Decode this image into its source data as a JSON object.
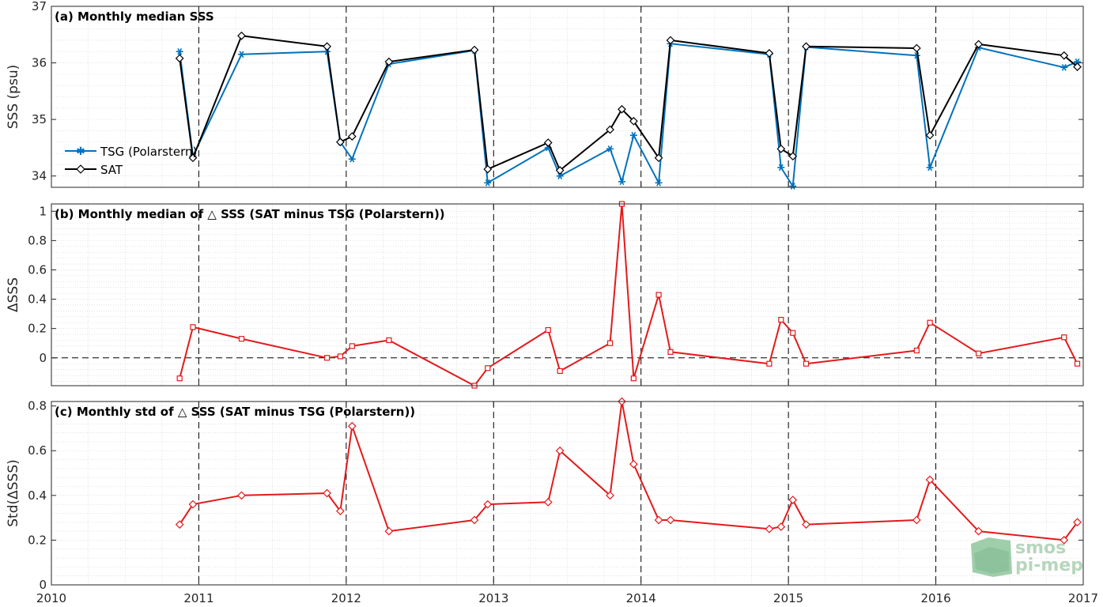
{
  "chart_data": [
    {
      "id": "a",
      "type": "line",
      "title": "(a) Monthly median SSS",
      "ylabel": "SSS (psu)",
      "xlabel": "",
      "xlim": [
        2010,
        2017
      ],
      "ylim": [
        33.8,
        37
      ],
      "yticks": [
        34,
        35,
        36,
        37
      ],
      "legend_position": "lower-left",
      "grid": true,
      "series": [
        {
          "name": "TSG (Polarstern)",
          "color": "#0072bd",
          "marker": "star",
          "x": [
            2010.87,
            2010.96,
            2011.29,
            2011.87,
            2011.96,
            2012.04,
            2012.29,
            2012.87,
            2012.96,
            2013.37,
            2013.45,
            2013.79,
            2013.87,
            2013.95,
            2014.12,
            2014.2,
            2014.87,
            2014.95,
            2015.03,
            2015.12,
            2015.87,
            2015.96,
            2016.29,
            2016.87,
            2016.96
          ],
          "y": [
            36.2,
            34.35,
            36.15,
            36.2,
            34.6,
            34.3,
            35.98,
            36.22,
            33.88,
            34.5,
            34.0,
            34.48,
            33.9,
            34.72,
            33.88,
            36.34,
            36.15,
            34.15,
            33.82,
            36.28,
            36.13,
            34.15,
            36.27,
            35.92,
            36.02
          ]
        },
        {
          "name": "SAT",
          "color": "#000000",
          "marker": "diamond",
          "x": [
            2010.87,
            2010.96,
            2011.29,
            2011.87,
            2011.96,
            2012.04,
            2012.29,
            2012.87,
            2012.96,
            2013.37,
            2013.45,
            2013.79,
            2013.87,
            2013.95,
            2014.12,
            2014.2,
            2014.87,
            2014.95,
            2015.03,
            2015.12,
            2015.87,
            2015.96,
            2016.29,
            2016.87,
            2016.96
          ],
          "y": [
            36.08,
            34.32,
            36.48,
            36.29,
            34.6,
            34.7,
            36.02,
            36.23,
            34.12,
            34.59,
            34.1,
            34.82,
            35.18,
            34.97,
            34.32,
            36.4,
            36.17,
            34.48,
            34.35,
            36.29,
            36.26,
            34.72,
            36.33,
            36.13,
            35.93
          ]
        }
      ]
    },
    {
      "id": "b",
      "type": "line",
      "title": "(b) Monthly median of △ SSS (SAT minus TSG (Polarstern))",
      "ylabel": "ΔSSS",
      "xlabel": "",
      "xlim": [
        2010,
        2017
      ],
      "ylim": [
        -0.19,
        1.05
      ],
      "yticks": [
        0,
        0.2,
        0.4,
        0.6,
        0.8,
        1
      ],
      "ytick_labels": [
        "0",
        "0.2",
        "0.4",
        "0.6",
        "0.8",
        "1"
      ],
      "zero_line": true,
      "grid": true,
      "series": [
        {
          "name": "",
          "color": "#e31a1c",
          "marker": "square",
          "x": [
            2010.87,
            2010.96,
            2011.29,
            2011.87,
            2011.96,
            2012.04,
            2012.29,
            2012.87,
            2012.96,
            2013.37,
            2013.45,
            2013.79,
            2013.87,
            2013.95,
            2014.12,
            2014.2,
            2014.87,
            2014.95,
            2015.03,
            2015.12,
            2015.87,
            2015.96,
            2016.29,
            2016.87,
            2016.96
          ],
          "y": [
            -0.14,
            0.21,
            0.13,
            0.0,
            0.01,
            0.08,
            0.12,
            -0.19,
            -0.07,
            0.19,
            -0.09,
            0.1,
            1.05,
            -0.14,
            0.43,
            0.04,
            -0.04,
            0.26,
            0.17,
            -0.04,
            0.05,
            0.24,
            0.03,
            0.14,
            -0.04
          ]
        }
      ]
    },
    {
      "id": "c",
      "type": "line",
      "title": "(c) Monthly std of △ SSS (SAT minus TSG (Polarstern))",
      "ylabel": "Std(ΔSSS)",
      "xlabel": "",
      "xlim": [
        2010,
        2017
      ],
      "ylim": [
        0,
        0.82
      ],
      "yticks": [
        0,
        0.2,
        0.4,
        0.6,
        0.8
      ],
      "ytick_labels": [
        "0",
        "0.2",
        "0.4",
        "0.6",
        "0.8"
      ],
      "xticks": [
        2010,
        2011,
        2012,
        2013,
        2014,
        2015,
        2016,
        2017
      ],
      "xtick_labels": [
        "2010",
        "2011",
        "2012",
        "2013",
        "2014",
        "2015",
        "2016",
        "2017"
      ],
      "grid": true,
      "series": [
        {
          "name": "",
          "color": "#e31a1c",
          "marker": "diamond",
          "x": [
            2010.87,
            2010.96,
            2011.29,
            2011.87,
            2011.96,
            2012.04,
            2012.29,
            2012.87,
            2012.96,
            2013.37,
            2013.45,
            2013.79,
            2013.87,
            2013.95,
            2014.12,
            2014.2,
            2014.87,
            2014.95,
            2015.03,
            2015.12,
            2015.87,
            2015.96,
            2016.29,
            2016.87,
            2016.96
          ],
          "y": [
            0.27,
            0.36,
            0.4,
            0.41,
            0.33,
            0.71,
            0.24,
            0.29,
            0.36,
            0.37,
            0.6,
            0.4,
            0.82,
            0.54,
            0.29,
            0.29,
            0.25,
            0.26,
            0.38,
            0.27,
            0.29,
            0.47,
            0.24,
            0.2,
            0.28
          ]
        }
      ]
    }
  ],
  "logo": {
    "line1": "smos",
    "line2": "pi-mep"
  }
}
